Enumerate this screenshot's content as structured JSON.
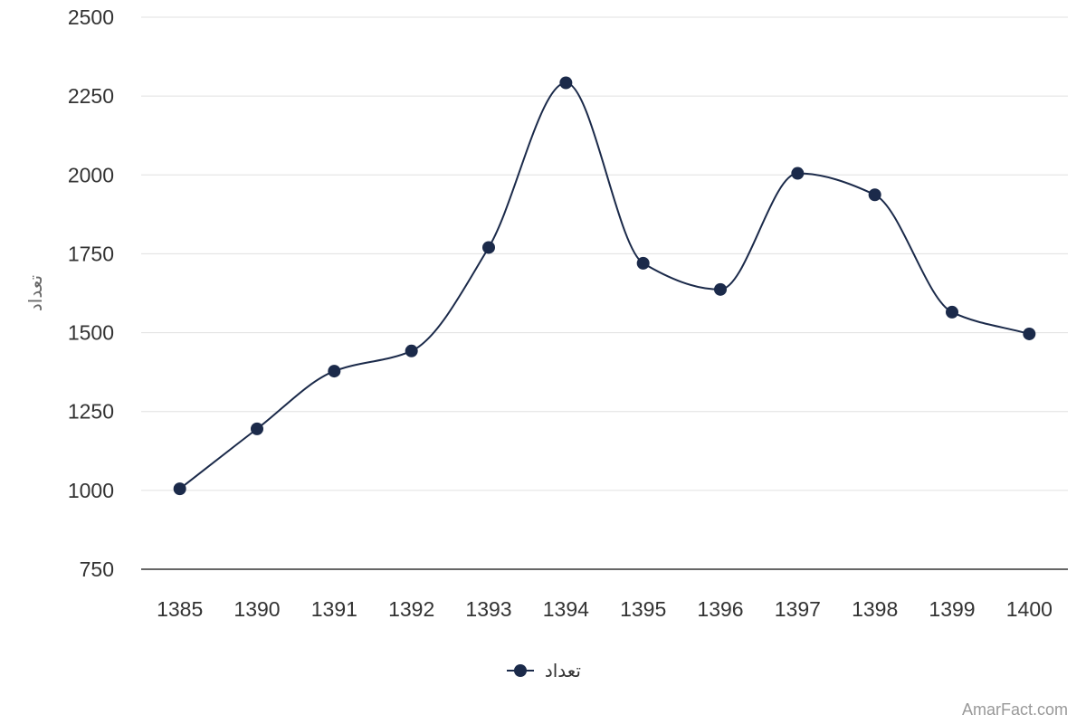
{
  "chart_data": {
    "type": "line",
    "categories": [
      "1385",
      "1390",
      "1391",
      "1392",
      "1393",
      "1394",
      "1395",
      "1396",
      "1397",
      "1398",
      "1399",
      "1400"
    ],
    "series": [
      {
        "name": "تعداد",
        "values": [
          1005,
          1195,
          1378,
          1442,
          1770,
          2292,
          1720,
          1637,
          2005,
          1937,
          1565,
          1496
        ],
        "color": "#1b2a4a"
      }
    ],
    "ylabel": "تعداد",
    "ylim": [
      750,
      2500
    ],
    "yticks": [
      "750",
      "1000",
      "1250",
      "1500",
      "1750",
      "2000",
      "2250",
      "2500"
    ],
    "grid": true,
    "legend_position": "bottom-center",
    "smooth": true
  },
  "credit": "AmarFact.com"
}
